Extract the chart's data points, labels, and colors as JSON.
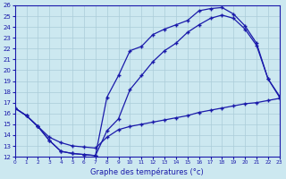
{
  "xlabel": "Graphe des températures (°c)",
  "xlim": [
    0,
    23
  ],
  "ylim": [
    12,
    26
  ],
  "xticks": [
    0,
    1,
    2,
    3,
    4,
    5,
    6,
    7,
    8,
    9,
    10,
    11,
    12,
    13,
    14,
    15,
    16,
    17,
    18,
    19,
    20,
    21,
    22,
    23
  ],
  "yticks": [
    12,
    13,
    14,
    15,
    16,
    17,
    18,
    19,
    20,
    21,
    22,
    23,
    24,
    25,
    26
  ],
  "bg_color": "#cce8f0",
  "line_color": "#1a1aaa",
  "grid_color": "#aaccd8",
  "line1_x": [
    0,
    1,
    2,
    3,
    4,
    5,
    6,
    7,
    8,
    9,
    10,
    11,
    12,
    13,
    14,
    15,
    16,
    17,
    18,
    19,
    20,
    21,
    22,
    23
  ],
  "line1_y": [
    16.5,
    15.8,
    14.8,
    13.5,
    12.5,
    12.3,
    12.2,
    12.1,
    17.5,
    19.5,
    21.8,
    22.2,
    23.3,
    23.8,
    24.2,
    24.6,
    25.5,
    25.7,
    25.8,
    25.2,
    24.1,
    22.5,
    19.2,
    17.6
  ],
  "line2_x": [
    0,
    1,
    2,
    3,
    4,
    5,
    6,
    7,
    8,
    9,
    10,
    11,
    12,
    13,
    14,
    15,
    16,
    17,
    18,
    19,
    20,
    21,
    22,
    23
  ],
  "line2_y": [
    16.5,
    15.8,
    14.8,
    13.5,
    12.5,
    12.3,
    12.2,
    12.1,
    14.4,
    15.5,
    18.2,
    19.5,
    20.8,
    21.8,
    22.5,
    23.5,
    24.2,
    24.8,
    25.1,
    24.8,
    23.8,
    22.3,
    19.2,
    17.5
  ],
  "line3_x": [
    0,
    1,
    2,
    3,
    4,
    5,
    6,
    7,
    8,
    9,
    10,
    11,
    12,
    13,
    14,
    15,
    16,
    17,
    18,
    19,
    20,
    21,
    22,
    23
  ],
  "line3_y": [
    16.5,
    15.8,
    14.8,
    13.8,
    13.3,
    13.0,
    12.9,
    12.8,
    13.8,
    14.5,
    14.8,
    15.0,
    15.2,
    15.4,
    15.6,
    15.8,
    16.1,
    16.3,
    16.5,
    16.7,
    16.9,
    17.0,
    17.2,
    17.4
  ]
}
